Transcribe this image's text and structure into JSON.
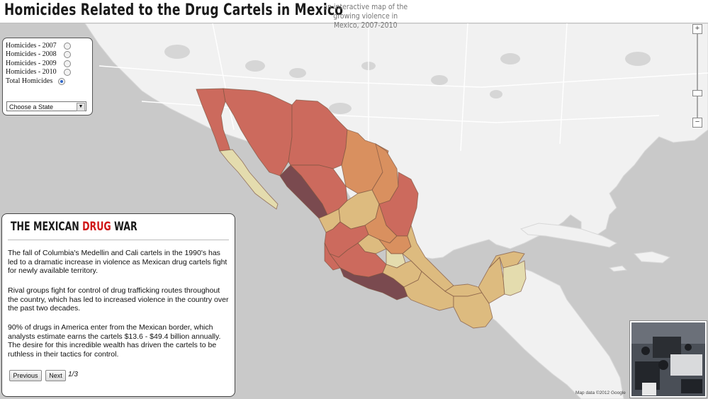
{
  "header": {
    "title": "Homicides Related to the Drug Cartels in Mexico",
    "subtitle": "an interactive map of the growing violence in Mexico, 2007-2010"
  },
  "layers": {
    "options": [
      {
        "label": "Homicides - 2007",
        "selected": false
      },
      {
        "label": "Homicides - 2008",
        "selected": false
      },
      {
        "label": "Homicides - 2009",
        "selected": false
      },
      {
        "label": "Homicides - 2010",
        "selected": false
      },
      {
        "label": "Total Homicides",
        "selected": true
      }
    ],
    "state_select": {
      "value": "Choose a State"
    }
  },
  "story": {
    "title_prefix": "THE MEXICAN ",
    "title_highlight": "DRUG",
    "title_suffix": " WAR",
    "paragraphs": [
      "The fall of Columbia's Medellin and Cali cartels in the 1990's has led to a dramatic increase in violence as Mexican drug cartels fight for newly available territory.",
      "Rival groups fight for control of drug trafficking routes throughout the country, which has led to increased violence in the country over the past two decades.",
      "90% of drugs in America enter from the Mexican border, which analysts estimate earns the cartels $13.6 - $49.4 billion annually. The desire for this incredible wealth has driven the cartels to be ruthless in their tactics for control."
    ],
    "prev_label": "Previous",
    "next_label": "Next",
    "page": "1/3"
  },
  "map": {
    "zoom_in": "+",
    "zoom_out": "−",
    "attribution": "Map data ©2012 Google",
    "colors": {
      "water": "#c9c9c9",
      "land": "#f1f1f1",
      "darkest": "#7a4a4f",
      "high": "#cc6a5d",
      "mid": "#d9905f",
      "low": "#ddbb7f",
      "lowest": "#e4dcae"
    }
  }
}
